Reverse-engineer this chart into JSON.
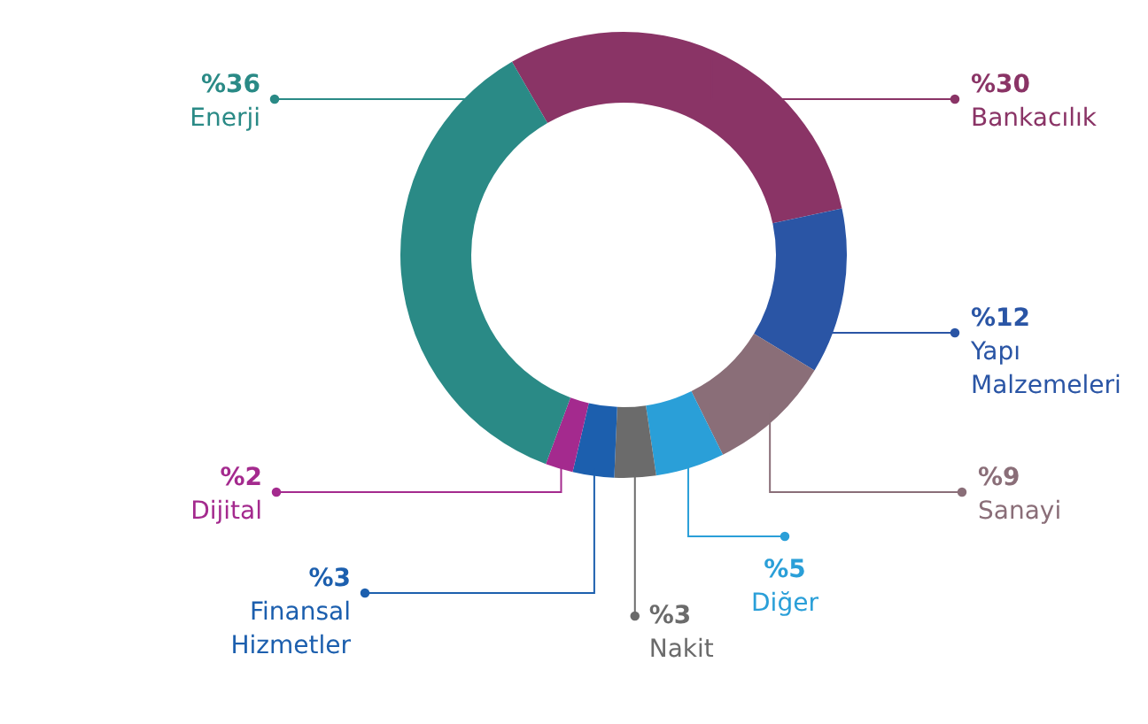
{
  "chart_data": {
    "type": "donut",
    "categories": [
      "Bankacılık",
      "Yapı Malzemeleri",
      "Sanayi",
      "Diğer",
      "Nakit",
      "Finansal Hizmetler",
      "Dijital",
      "Enerji"
    ],
    "values": [
      30,
      12,
      9,
      5,
      3,
      3,
      2,
      36
    ],
    "value_labels": [
      "%30",
      "%12",
      "%9",
      "%5",
      "%3",
      "%3",
      "%2",
      "%36"
    ],
    "colors": [
      "#8a3466",
      "#2a55a5",
      "#8a6e78",
      "#2a9fd8",
      "#6b6b6b",
      "#1c5fae",
      "#a42a8e",
      "#2a8a86"
    ]
  }
}
